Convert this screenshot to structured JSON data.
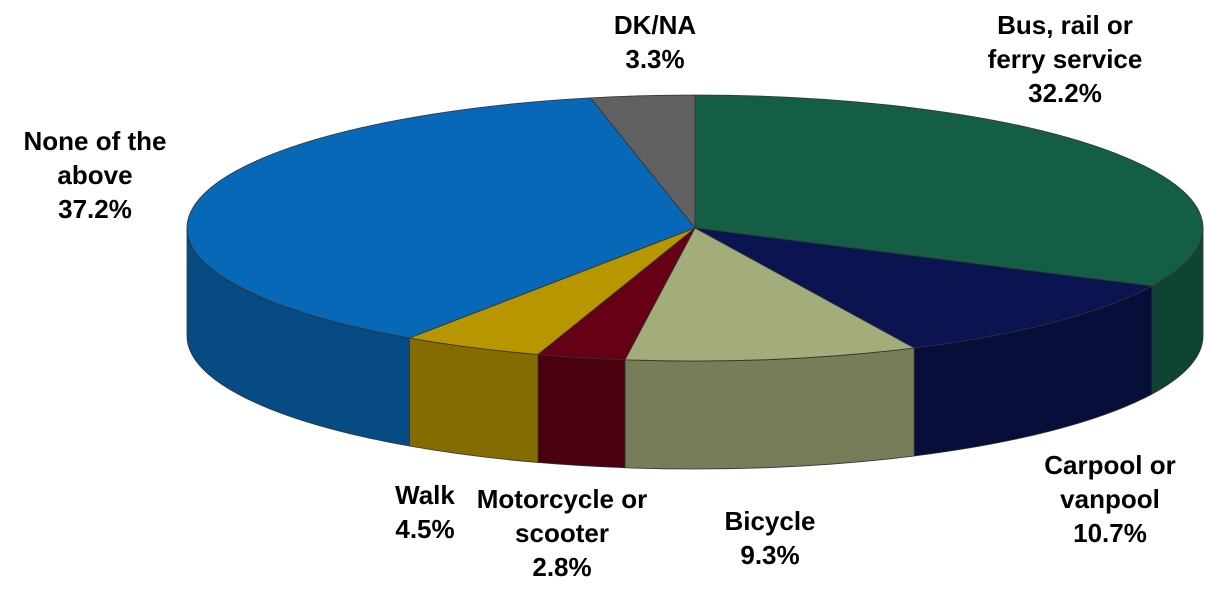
{
  "chart_data": {
    "type": "pie",
    "categories": [
      "Bus, rail or ferry service",
      "Carpool or vanpool",
      "Bicycle",
      "Motorcycle or scooter",
      "Walk",
      "None of the above",
      "DK/NA"
    ],
    "values": [
      32.2,
      10.7,
      9.3,
      2.8,
      4.5,
      37.2,
      3.3
    ],
    "value_labels": [
      "32.2%",
      "10.7%",
      "9.3%",
      "2.8%",
      "4.5%",
      "37.2%",
      "3.3%"
    ],
    "colors": [
      "#135e45",
      "#0a1450",
      "#a3ad7c",
      "#650015",
      "#b89600",
      "#0868b8",
      "#606060"
    ]
  }
}
